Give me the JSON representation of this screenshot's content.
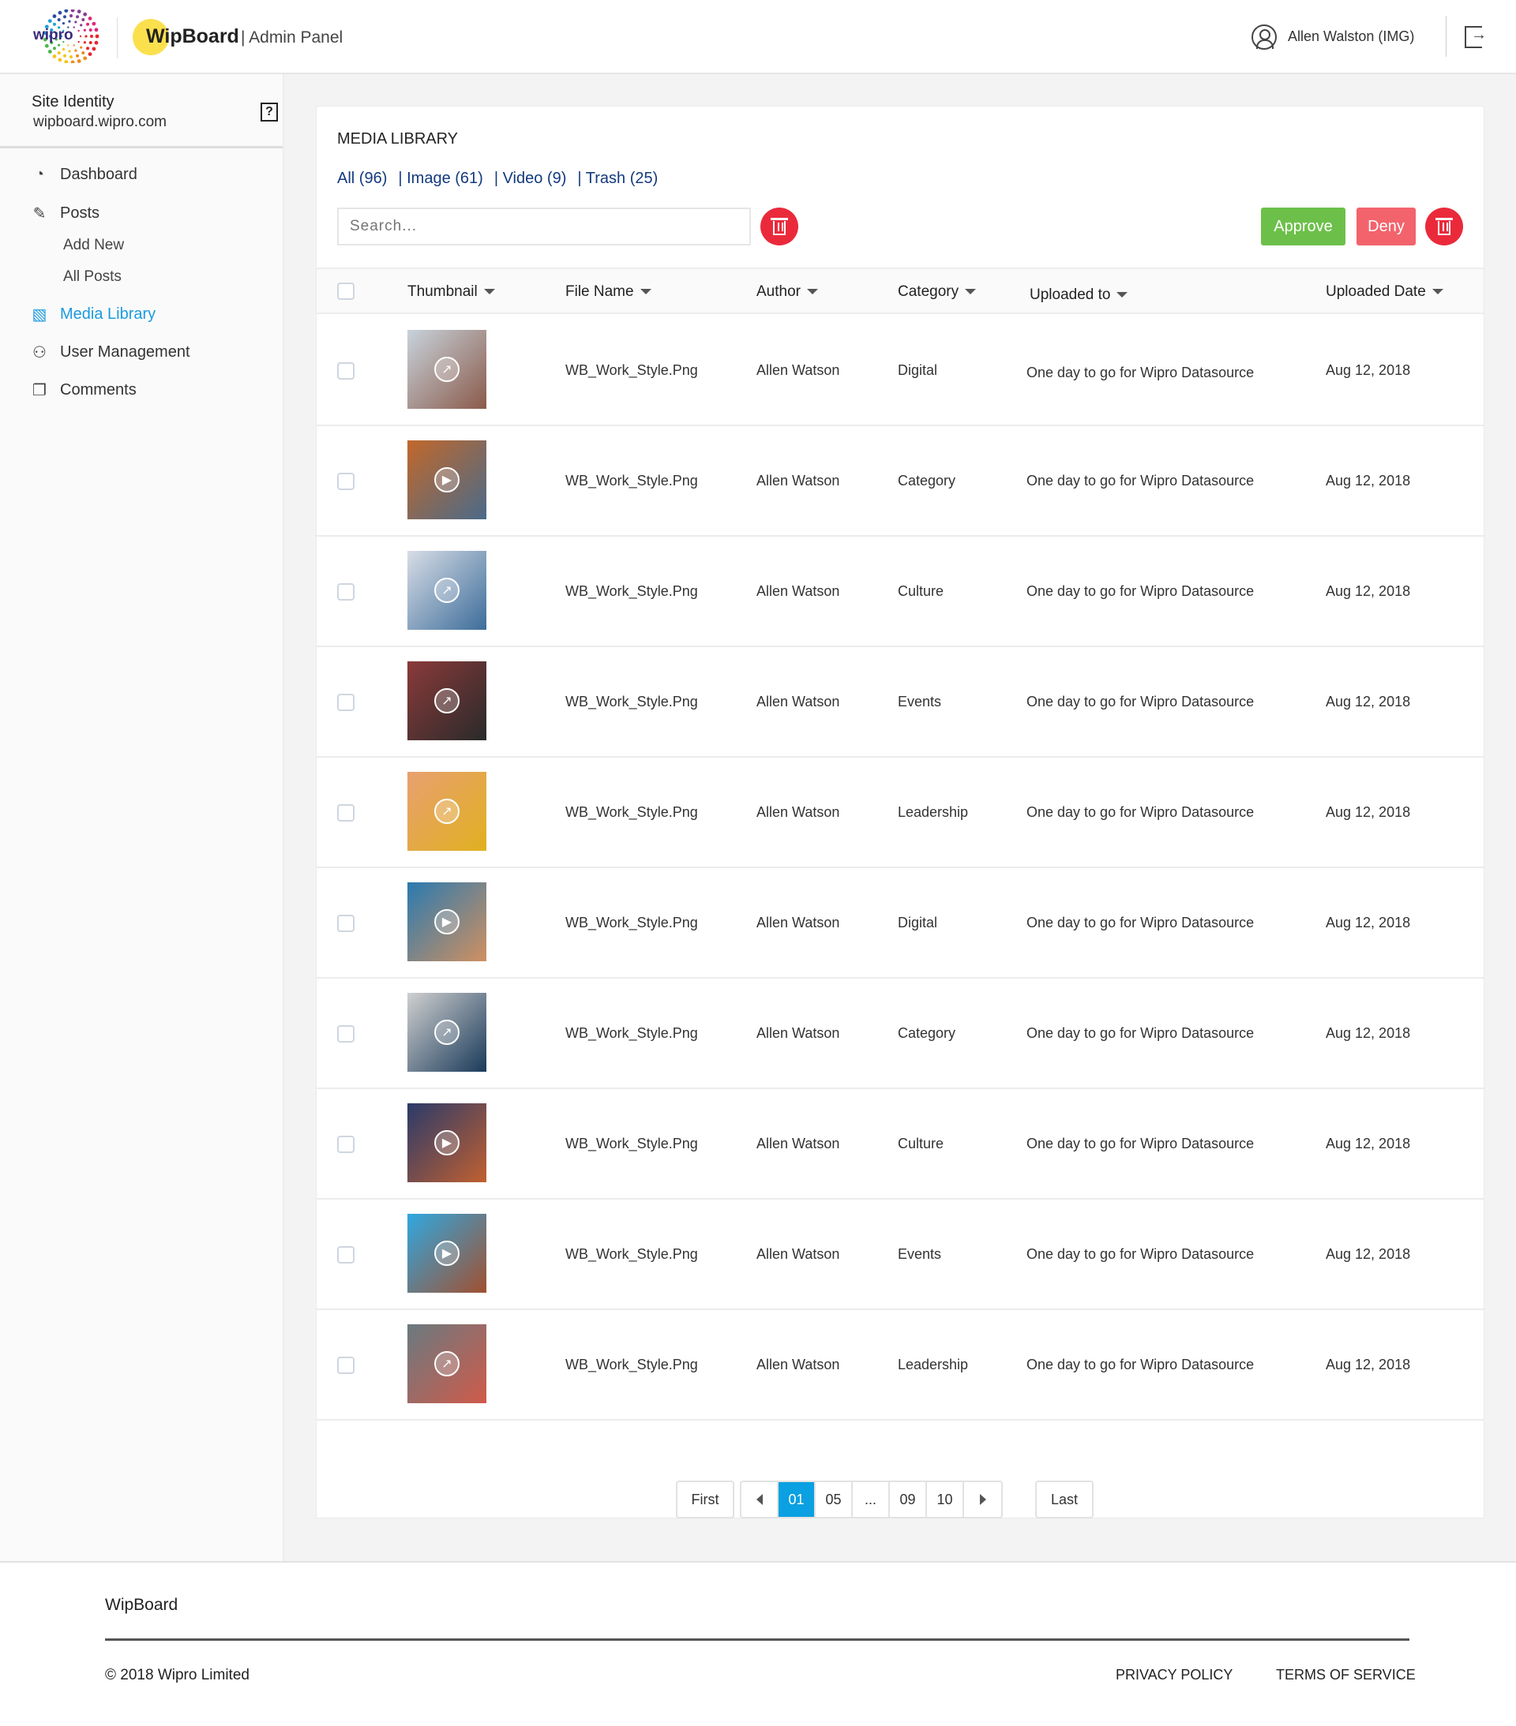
{
  "header": {
    "logo_text": "wipro",
    "brand": "WipBoard",
    "subtitle": "| Admin Panel",
    "user": "Allen Walston (IMG)"
  },
  "sidebar": {
    "site_title": "Site Identity",
    "site_url": "wipboard.wipro.com",
    "help": "?",
    "items": [
      {
        "label": "Dashboard",
        "icon": "dashboard-icon"
      },
      {
        "label": "Posts",
        "icon": "pencil-icon"
      },
      {
        "label": "Media Library",
        "icon": "media-icon",
        "active": true
      },
      {
        "label": "User Management",
        "icon": "users-icon"
      },
      {
        "label": "Comments",
        "icon": "comments-icon"
      }
    ],
    "sub_items": [
      {
        "label": "Add New"
      },
      {
        "label": "All Posts"
      }
    ]
  },
  "library": {
    "title": "MEDIA LIBRARY",
    "filters": [
      {
        "label": "All (96)"
      },
      {
        "label": "| Image (61)"
      },
      {
        "label": "| Video (9)"
      },
      {
        "label": "| Trash (25)"
      }
    ],
    "search_placeholder": "Search...",
    "approve": "Approve",
    "deny": "Deny",
    "columns": [
      "Thumbnail",
      "File Name",
      "Author",
      "Category",
      "Uploaded to",
      "Uploaded Date"
    ],
    "rows": [
      {
        "type": "image",
        "file": "WB_Work_Style.Png",
        "author": "Allen Watson",
        "category": "Digital",
        "uploaded_to": "One day to go for Wipro Datasource",
        "date": "Aug 12, 2018",
        "colors": [
          "#c8d3dc",
          "#8a5a4a"
        ]
      },
      {
        "type": "video",
        "file": "WB_Work_Style.Png",
        "author": "Allen Watson",
        "category": "Category",
        "uploaded_to": "One day to go for Wipro Datasource",
        "date": "Aug 12, 2018",
        "colors": [
          "#c2682a",
          "#4a6a8a"
        ]
      },
      {
        "type": "image",
        "file": "WB_Work_Style.Png",
        "author": "Allen Watson",
        "category": "Culture",
        "uploaded_to": "One day to go for Wipro Datasource",
        "date": "Aug 12, 2018",
        "colors": [
          "#d8dde6",
          "#3d6d9a"
        ]
      },
      {
        "type": "image",
        "file": "WB_Work_Style.Png",
        "author": "Allen Watson",
        "category": "Events",
        "uploaded_to": "One day to go for Wipro Datasource",
        "date": "Aug 12, 2018",
        "colors": [
          "#8a3a3a",
          "#2a2a2a"
        ]
      },
      {
        "type": "image",
        "file": "WB_Work_Style.Png",
        "author": "Allen Watson",
        "category": "Leadership",
        "uploaded_to": "One day to go for Wipro Datasource",
        "date": "Aug 12, 2018",
        "colors": [
          "#e8a070",
          "#e0b020"
        ]
      },
      {
        "type": "video",
        "file": "WB_Work_Style.Png",
        "author": "Allen Watson",
        "category": "Digital",
        "uploaded_to": "One day to go for Wipro Datasource",
        "date": "Aug 12, 2018",
        "colors": [
          "#2a7ab0",
          "#d09060"
        ]
      },
      {
        "type": "image",
        "file": "WB_Work_Style.Png",
        "author": "Allen Watson",
        "category": "Category",
        "uploaded_to": "One day to go for Wipro Datasource",
        "date": "Aug 12, 2018",
        "colors": [
          "#d0d0d0",
          "#1a3a5a"
        ]
      },
      {
        "type": "video",
        "file": "WB_Work_Style.Png",
        "author": "Allen Watson",
        "category": "Culture",
        "uploaded_to": "One day to go for Wipro Datasource",
        "date": "Aug 12, 2018",
        "colors": [
          "#2a3a6a",
          "#c06030"
        ]
      },
      {
        "type": "video",
        "file": "WB_Work_Style.Png",
        "author": "Allen Watson",
        "category": "Events",
        "uploaded_to": "One day to go for Wipro Datasource",
        "date": "Aug 12, 2018",
        "colors": [
          "#30a8e0",
          "#a05030"
        ]
      },
      {
        "type": "image",
        "file": "WB_Work_Style.Png",
        "author": "Allen Watson",
        "category": "Leadership",
        "uploaded_to": "One day to go for Wipro Datasource",
        "date": "Aug 12, 2018",
        "colors": [
          "#6a7a80",
          "#d05a4a"
        ]
      }
    ]
  },
  "pagination": {
    "first": "First",
    "last": "Last",
    "pages": [
      "01",
      "05",
      "...",
      "09",
      "10"
    ],
    "current": "01"
  },
  "footer": {
    "brand": "WipBoard",
    "copyright": "© 2018 Wipro Limited",
    "privacy": "PRIVACY POLICY",
    "terms": "TERMS OF SERVICE"
  },
  "colors": {
    "accent": "#1b9be0",
    "approve": "#6cc04a",
    "deny": "#f3636c",
    "trash": "#ea2a3b",
    "page_active": "#0aa0e1"
  }
}
